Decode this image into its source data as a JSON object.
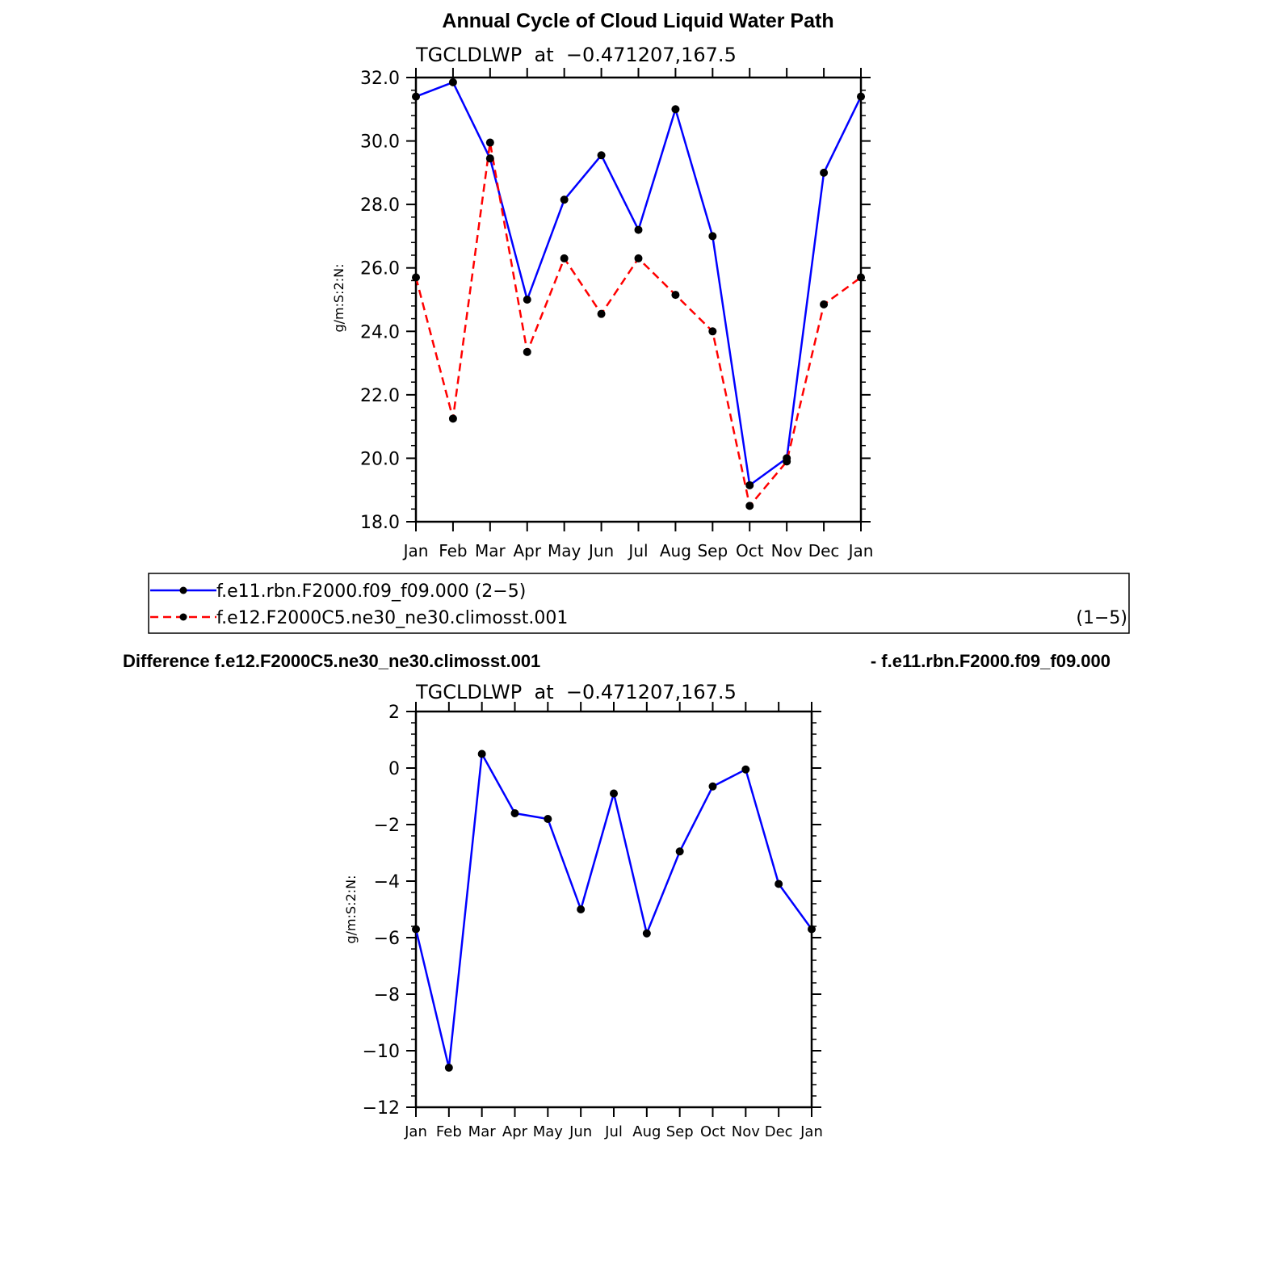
{
  "chart_data": [
    {
      "type": "line",
      "title": "Annual Cycle of Cloud Liquid Water Path",
      "subtitle": "TGCLDLWP  at  −0.471207,167.5",
      "ylabel": "g/m:S:2:N:",
      "xlabel": "",
      "categories": [
        "Jan",
        "Feb",
        "Mar",
        "Apr",
        "May",
        "Jun",
        "Jul",
        "Aug",
        "Sep",
        "Oct",
        "Nov",
        "Dec",
        "Jan"
      ],
      "ylim": [
        18,
        32
      ],
      "yticks": [
        "18.0",
        "20.0",
        "22.0",
        "24.0",
        "26.0",
        "28.0",
        "30.0",
        "32.0"
      ],
      "series": [
        {
          "name": "f.e11.rbn.F2000.f09_f09.000 (2−5)",
          "color": "#0000ff",
          "dash": "solid",
          "values": [
            31.4,
            31.85,
            29.45,
            25.0,
            28.15,
            29.55,
            27.2,
            31.0,
            27.0,
            19.15,
            20.0,
            29.0,
            31.4
          ]
        },
        {
          "name": "f.e12.F2000C5.ne30_ne30.climosst.001",
          "color": "#ff0000",
          "dash": "dashed",
          "values": [
            25.7,
            21.25,
            29.95,
            23.35,
            26.3,
            24.55,
            26.3,
            25.15,
            24.0,
            18.5,
            19.9,
            24.85,
            25.7
          ]
        }
      ],
      "legend": {
        "placement": "below",
        "entries": [
          {
            "label": "f.e11.rbn.F2000.f09_f09.000 (2−5)",
            "suffix": "",
            "color": "#0000ff",
            "dash": "solid"
          },
          {
            "label": "f.e12.F2000C5.ne30_ne30.climosst.001",
            "suffix": "(1−5)",
            "color": "#ff0000",
            "dash": "dashed"
          }
        ]
      },
      "grid": false
    },
    {
      "type": "line",
      "title_left": "Difference f.e12.F2000C5.ne30_ne30.climosst.001",
      "title_right": "- f.e11.rbn.F2000.f09_f09.000",
      "subtitle": "TGCLDLWP  at  −0.471207,167.5",
      "ylabel": "g/m:S:2:N:",
      "xlabel": "",
      "categories": [
        "Jan",
        "Feb",
        "Mar",
        "Apr",
        "May",
        "Jun",
        "Jul",
        "Aug",
        "Sep",
        "Oct",
        "Nov",
        "Dec",
        "Jan"
      ],
      "ylim": [
        -12,
        2
      ],
      "yticks": [
        "−12",
        "−10",
        "−8",
        "−6",
        "−4",
        "−2",
        "0",
        "2"
      ],
      "series": [
        {
          "name": "",
          "color": "#0000ff",
          "dash": "solid",
          "values": [
            -5.7,
            -10.6,
            0.5,
            -1.6,
            -1.8,
            -5.0,
            -0.9,
            -5.85,
            -2.95,
            -0.65,
            -0.05,
            -4.1,
            -5.7
          ]
        }
      ],
      "grid": false
    }
  ]
}
